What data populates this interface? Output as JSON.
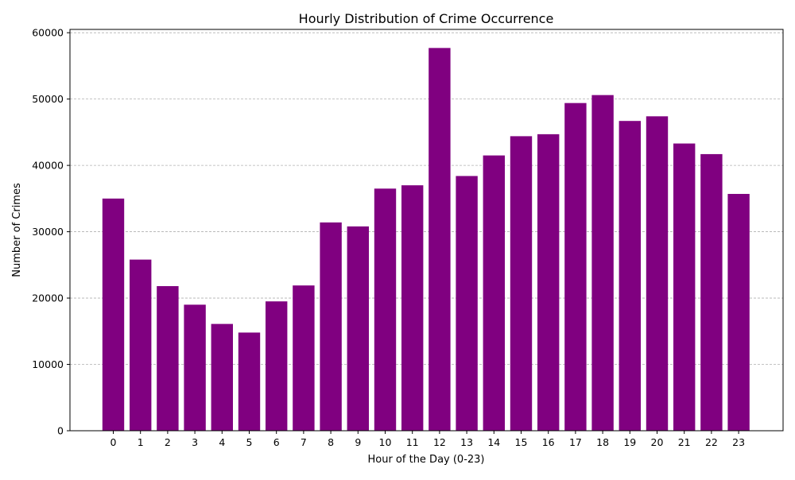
{
  "chart_data": {
    "type": "bar",
    "title": "Hourly Distribution of Crime Occurrence",
    "xlabel": "Hour of the Day (0-23)",
    "ylabel": "Number of Crimes",
    "categories": [
      "0",
      "1",
      "2",
      "3",
      "4",
      "5",
      "6",
      "7",
      "8",
      "9",
      "10",
      "11",
      "12",
      "13",
      "14",
      "15",
      "16",
      "17",
      "18",
      "19",
      "20",
      "21",
      "22",
      "23"
    ],
    "values": [
      35000,
      25800,
      21800,
      19000,
      16100,
      14800,
      19500,
      21900,
      31400,
      30800,
      36500,
      37000,
      57700,
      38400,
      41500,
      44400,
      44700,
      49400,
      50600,
      46700,
      47400,
      43300,
      41700,
      35700
    ],
    "ylim": [
      0,
      60500
    ],
    "yticks": [
      0,
      10000,
      20000,
      30000,
      40000,
      50000,
      60000
    ],
    "grid": "y-dashed",
    "bar_color": "#800080"
  }
}
